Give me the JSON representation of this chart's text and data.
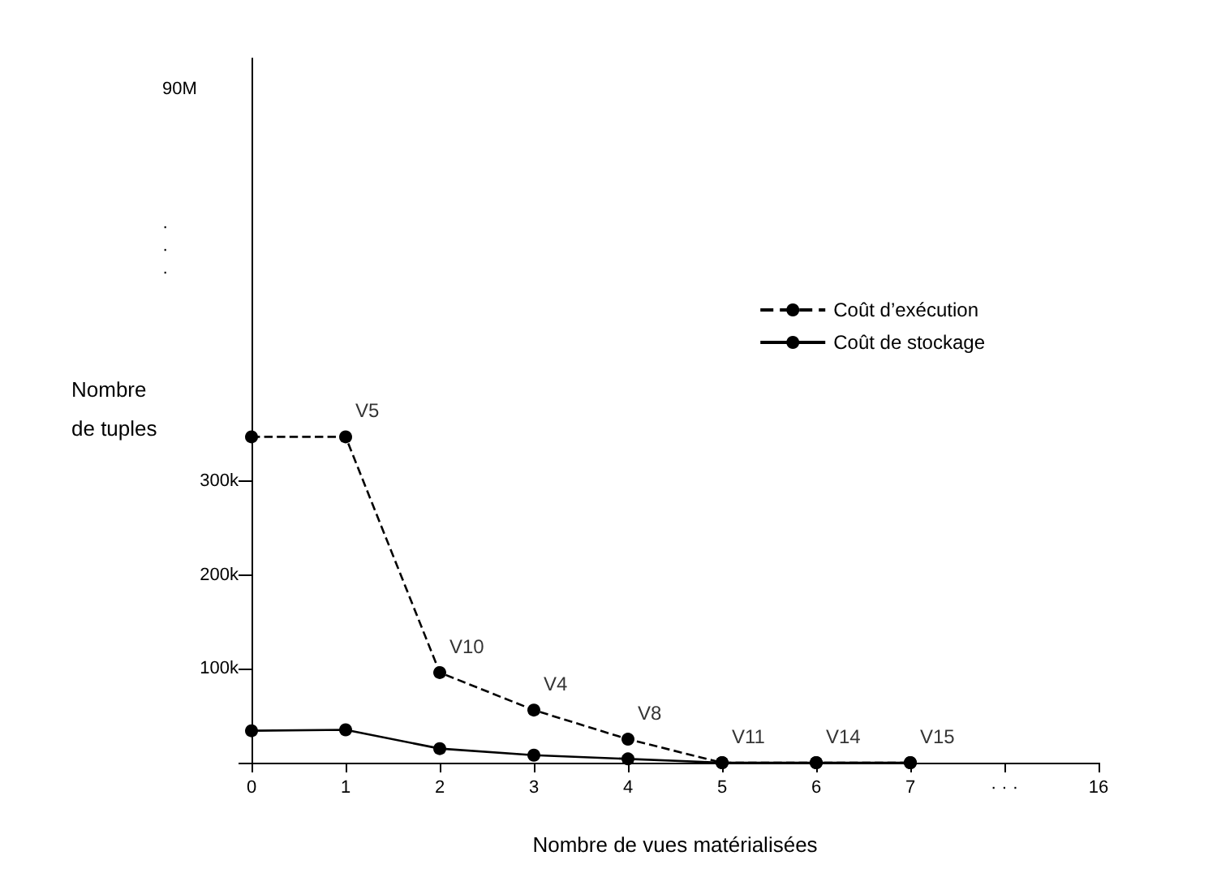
{
  "chart_data": {
    "type": "line",
    "xlabel": "Nombre de vues matérialisées",
    "ylabel": "Nombre de tuples",
    "categories": [
      "0",
      "1",
      "2",
      "3",
      "4",
      "5",
      "6",
      "7",
      "· · ·",
      "16"
    ],
    "series": [
      {
        "name": "Coût d’exécution",
        "color": "#000000",
        "line_style": "dashed",
        "values": [
          347000,
          347000,
          96000,
          56000,
          25000,
          0,
          0,
          0,
          null,
          null
        ]
      },
      {
        "name": "Coût de stockage",
        "color": "#000000",
        "line_style": "solid",
        "values": [
          34000,
          35000,
          15000,
          8000,
          4000,
          0,
          0,
          0,
          null,
          null
        ]
      }
    ],
    "ylim": [
      0,
      750000
    ],
    "yticks": [
      {
        "value": 0,
        "label": null
      },
      {
        "value": 100000,
        "label": "100k"
      },
      {
        "value": 200000,
        "label": "200k"
      },
      {
        "value": 300000,
        "label": "300k"
      }
    ],
    "marker": "circle",
    "grid": false,
    "legend": "right",
    "annotations": [
      "90M",
      "· · ·",
      {
        "text": "V5",
        "x": "1",
        "y": 347000
      },
      {
        "text": "V10",
        "x": "2",
        "y": 96000
      },
      {
        "text": "V4",
        "x": "3",
        "y": 56000
      },
      {
        "text": "V8",
        "x": "4",
        "y": 25000
      },
      {
        "text": "V11",
        "x": "5",
        "y": 0
      },
      {
        "text": "V14",
        "x": "6",
        "y": 0
      },
      {
        "text": "V15",
        "x": "7",
        "y": 0
      }
    ]
  }
}
